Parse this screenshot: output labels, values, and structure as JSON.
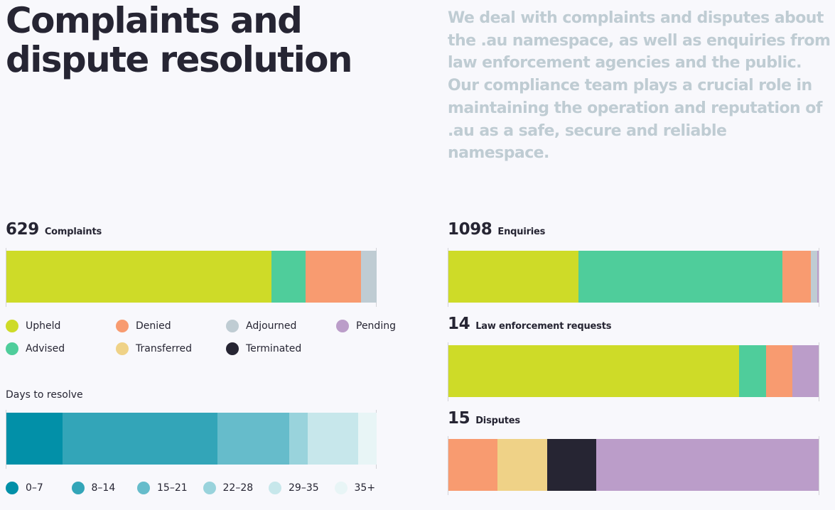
{
  "heading": {
    "title_line1": "Complaints and",
    "title_line2": "dispute resolution",
    "intro": "We deal with complaints and disputes about the .au namespace, as well as enquiries from law enforcement agencies and the public. Our compliance team plays a crucial role in maintaining the operation and reputation of .au as a safe, secure and reliable namespace."
  },
  "colors": {
    "upheld": "#cedb28",
    "advised": "#4fcd9b",
    "denied": "#f89b70",
    "transferred": "#efd287",
    "adjourned": "#bfccd3",
    "terminated": "#262533",
    "pending": "#bb9dc9",
    "d0_7": "#0290a8",
    "d8_14": "#33a5b8",
    "d15_21": "#66bccb",
    "d22_28": "#99d3dc",
    "d29_35": "#c7e7eb",
    "d35_plus": "#e8f5f6"
  },
  "chart_data": [
    {
      "type": "bar",
      "stacked": true,
      "orientation": "horizontal",
      "total": 629,
      "label": "Complaints",
      "series": [
        {
          "name": "Upheld",
          "value": 450,
          "color": "#cedb28"
        },
        {
          "name": "Advised",
          "value": 58,
          "color": "#4fcd9b"
        },
        {
          "name": "Denied",
          "value": 95,
          "color": "#f89b70"
        },
        {
          "name": "Adjourned",
          "value": 26,
          "color": "#bfccd3"
        }
      ],
      "legend": [
        {
          "name": "Upheld",
          "color": "#cedb28"
        },
        {
          "name": "Denied",
          "color": "#f89b70"
        },
        {
          "name": "Adjourned",
          "color": "#bfccd3"
        },
        {
          "name": "Pending",
          "color": "#bb9dc9"
        },
        {
          "name": "Advised",
          "color": "#4fcd9b"
        },
        {
          "name": "Transferred",
          "color": "#efd287"
        },
        {
          "name": "Terminated",
          "color": "#262533"
        }
      ]
    },
    {
      "type": "bar",
      "stacked": true,
      "orientation": "horizontal",
      "label": "Days to resolve",
      "series": [
        {
          "name": "0–7",
          "value": 95,
          "color": "#0290a8"
        },
        {
          "name": "8–14",
          "value": 263,
          "color": "#33a5b8"
        },
        {
          "name": "15–21",
          "value": 122,
          "color": "#66bccb"
        },
        {
          "name": "22–28",
          "value": 32,
          "color": "#99d3dc"
        },
        {
          "name": "29–35",
          "value": 86,
          "color": "#c7e7eb"
        },
        {
          "name": "35+",
          "value": 31,
          "color": "#e8f5f6"
        }
      ]
    },
    {
      "type": "bar",
      "stacked": true,
      "orientation": "horizontal",
      "total": 1098,
      "label": "Enquiries",
      "series": [
        {
          "name": "Upheld",
          "value": 385,
          "color": "#cedb28"
        },
        {
          "name": "Advised",
          "value": 606,
          "color": "#4fcd9b"
        },
        {
          "name": "Denied",
          "value": 84,
          "color": "#f89b70"
        },
        {
          "name": "Adjourned",
          "value": 19,
          "color": "#bfccd3"
        },
        {
          "name": "Pending",
          "value": 4,
          "color": "#bb9dc9"
        }
      ]
    },
    {
      "type": "bar",
      "stacked": true,
      "orientation": "horizontal",
      "total": 14,
      "label": "Law enforcement requests",
      "series": [
        {
          "name": "Upheld",
          "value": 11,
          "color": "#cedb28"
        },
        {
          "name": "Advised",
          "value": 1,
          "color": "#4fcd9b"
        },
        {
          "name": "Denied",
          "value": 1,
          "color": "#f89b70"
        },
        {
          "name": "Pending",
          "value": 1,
          "color": "#bb9dc9"
        }
      ]
    },
    {
      "type": "bar",
      "stacked": true,
      "orientation": "horizontal",
      "total": 15,
      "label": "Disputes",
      "series": [
        {
          "name": "Denied",
          "value": 2,
          "color": "#f89b70"
        },
        {
          "name": "Transferred",
          "value": 2,
          "color": "#efd287"
        },
        {
          "name": "Terminated",
          "value": 2,
          "color": "#262533"
        },
        {
          "name": "Pending",
          "value": 9,
          "color": "#bb9dc9"
        }
      ]
    }
  ]
}
